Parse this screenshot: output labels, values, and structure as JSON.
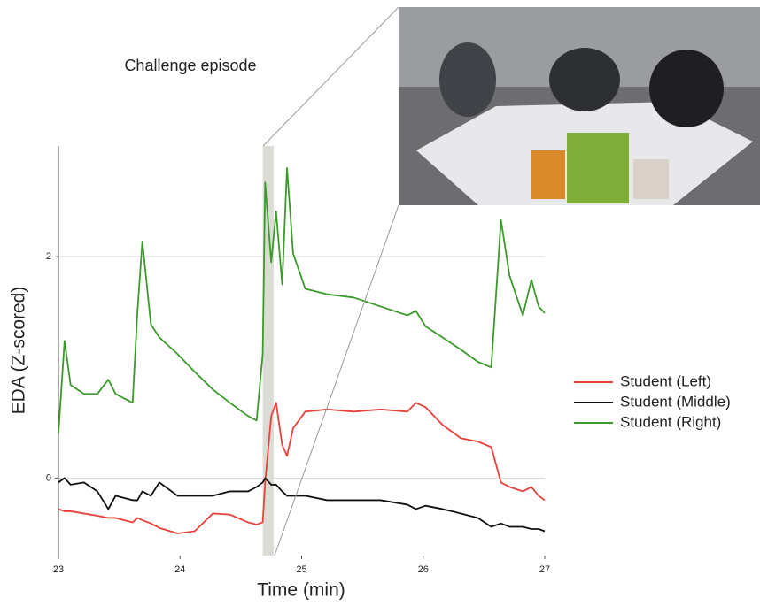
{
  "chart_data": {
    "type": "line",
    "annotation": "Challenge episode",
    "x_label": "Time (min)",
    "y_label": "EDA (Z-scored)",
    "x": [
      23.0,
      23.05,
      23.1,
      23.21,
      23.32,
      23.41,
      23.47,
      23.61,
      23.65,
      23.69,
      23.76,
      23.83,
      23.98,
      24.12,
      24.27,
      24.41,
      24.56,
      24.63,
      24.68,
      24.7,
      24.75,
      24.79,
      24.84,
      24.88,
      24.93,
      25.03,
      25.21,
      25.43,
      25.65,
      25.87,
      25.94,
      26.02,
      26.16,
      26.31,
      26.45,
      26.56,
      26.64,
      26.71,
      26.82,
      26.89,
      26.95,
      27.0
    ],
    "series": [
      {
        "name": "Student (Left)",
        "color": "#e8413c",
        "values": [
          -0.28,
          -0.3,
          -0.3,
          -0.32,
          -0.34,
          -0.36,
          -0.36,
          -0.4,
          -0.36,
          -0.38,
          -0.41,
          -0.45,
          -0.5,
          -0.48,
          -0.32,
          -0.33,
          -0.4,
          -0.42,
          -0.4,
          -0.04,
          0.56,
          0.68,
          0.3,
          0.2,
          0.45,
          0.6,
          0.62,
          0.6,
          0.62,
          0.6,
          0.68,
          0.64,
          0.48,
          0.36,
          0.33,
          0.28,
          -0.04,
          -0.08,
          -0.12,
          -0.08,
          -0.16,
          -0.2
        ]
      },
      {
        "name": "Student (Middle)",
        "color": "#111111",
        "values": [
          -0.04,
          0.0,
          -0.06,
          -0.04,
          -0.12,
          -0.28,
          -0.16,
          -0.2,
          -0.2,
          -0.12,
          -0.16,
          -0.04,
          -0.16,
          -0.16,
          -0.16,
          -0.12,
          -0.12,
          -0.08,
          -0.04,
          0.0,
          -0.06,
          -0.06,
          -0.12,
          -0.16,
          -0.16,
          -0.16,
          -0.2,
          -0.2,
          -0.2,
          -0.24,
          -0.28,
          -0.25,
          -0.28,
          -0.32,
          -0.36,
          -0.44,
          -0.41,
          -0.44,
          -0.44,
          -0.46,
          -0.46,
          -0.48
        ]
      },
      {
        "name": "Student (Right)",
        "color": "#3a9a2a",
        "values": [
          0.4,
          1.24,
          0.84,
          0.76,
          0.76,
          0.89,
          0.76,
          0.68,
          1.51,
          2.14,
          1.39,
          1.27,
          1.12,
          0.96,
          0.8,
          0.68,
          0.56,
          0.52,
          1.12,
          2.67,
          1.95,
          2.41,
          1.75,
          2.8,
          2.03,
          1.71,
          1.66,
          1.63,
          1.55,
          1.47,
          1.51,
          1.37,
          1.27,
          1.16,
          1.05,
          1.0,
          2.33,
          1.83,
          1.47,
          1.79,
          1.55,
          1.49
        ]
      }
    ],
    "highlight_x": [
      24.68,
      24.77
    ],
    "xlim": [
      23,
      27
    ],
    "xticks": [
      23,
      24,
      25,
      26,
      27
    ],
    "ylim": [
      -0.7,
      3.0
    ],
    "yticks": [
      0,
      2
    ],
    "grid": true
  }
}
